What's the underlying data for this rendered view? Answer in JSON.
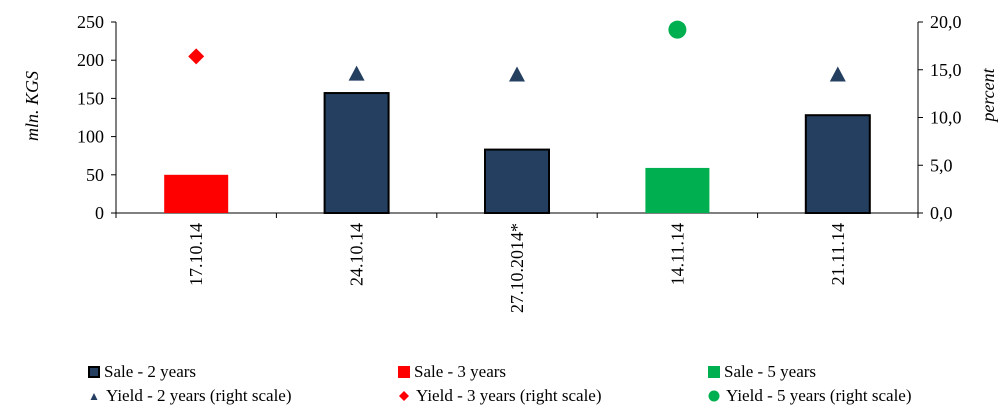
{
  "chart_data": {
    "type": "bar",
    "categories": [
      "17.10.14",
      "24.10.14",
      "27.10.2014*",
      "14.11.14",
      "21.11.14"
    ],
    "ylabel": "mln. KGS",
    "y2label": "percent",
    "ylim": [
      0,
      250
    ],
    "y2lim": [
      0,
      20
    ],
    "yticks": [
      "0",
      "50",
      "100",
      "150",
      "200",
      "250"
    ],
    "y2ticks": [
      "0,0",
      "5,0",
      "10,0",
      "15,0",
      "20,0"
    ],
    "grid": false,
    "legend_position": "bottom",
    "series": [
      {
        "name": "Sale - 2 years",
        "kind": "bar",
        "axis": "left",
        "color": "#243f60",
        "values": [
          null,
          157,
          83,
          null,
          128
        ]
      },
      {
        "name": "Sale - 3 years",
        "kind": "bar",
        "axis": "left",
        "color": "#ff0000",
        "values": [
          50,
          null,
          null,
          null,
          null
        ]
      },
      {
        "name": "Sale - 5 years",
        "kind": "bar",
        "axis": "left",
        "color": "#00b050",
        "values": [
          null,
          null,
          null,
          59,
          null
        ]
      },
      {
        "name": "Yield - 2 years (right scale)",
        "kind": "marker",
        "marker": "triangle",
        "axis": "right",
        "color": "#243f60",
        "values": [
          null,
          14.6,
          14.5,
          null,
          14.5
        ]
      },
      {
        "name": "Yield - 3 years (right scale)",
        "kind": "marker",
        "marker": "diamond",
        "axis": "right",
        "color": "#ff0000",
        "values": [
          16.4,
          null,
          null,
          null,
          null
        ]
      },
      {
        "name": "Yield - 5 years (right scale)",
        "kind": "marker",
        "marker": "circle",
        "axis": "right",
        "color": "#00b050",
        "values": [
          null,
          null,
          null,
          19.2,
          null
        ]
      }
    ]
  }
}
